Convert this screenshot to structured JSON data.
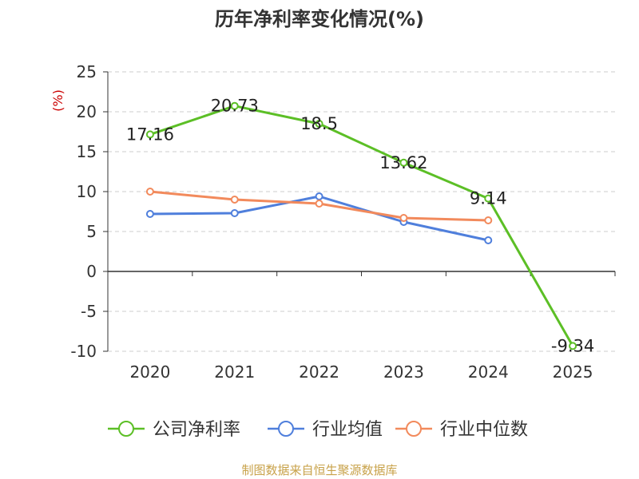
{
  "source": "制图数据来自恒生聚源数据库",
  "chart_data": {
    "type": "line",
    "title": "历年净利率变化情况(%)",
    "ylabel": "(%)",
    "xlabel": "",
    "categories": [
      "2020",
      "2021",
      "2022",
      "2023",
      "2024",
      "2025"
    ],
    "ylim": [
      -10,
      25
    ],
    "yticks": [
      25,
      20,
      15,
      10,
      5,
      0,
      -5,
      -10
    ],
    "grid": true,
    "legend_position": "bottom",
    "series": [
      {
        "name": "公司净利率",
        "color": "#5cbf26",
        "values": [
          17.16,
          20.73,
          18.5,
          13.62,
          9.14,
          -9.34
        ],
        "labels": [
          "17.16",
          "20.73",
          "18.5",
          "13.62",
          "9.14",
          "-9.34"
        ]
      },
      {
        "name": "行业均值",
        "color": "#4f7fdc",
        "values": [
          7.2,
          7.3,
          9.4,
          6.2,
          3.9,
          null
        ]
      },
      {
        "name": "行业中位数",
        "color": "#f28a5c",
        "values": [
          10.0,
          9.0,
          8.5,
          6.7,
          6.4,
          null
        ]
      }
    ]
  }
}
